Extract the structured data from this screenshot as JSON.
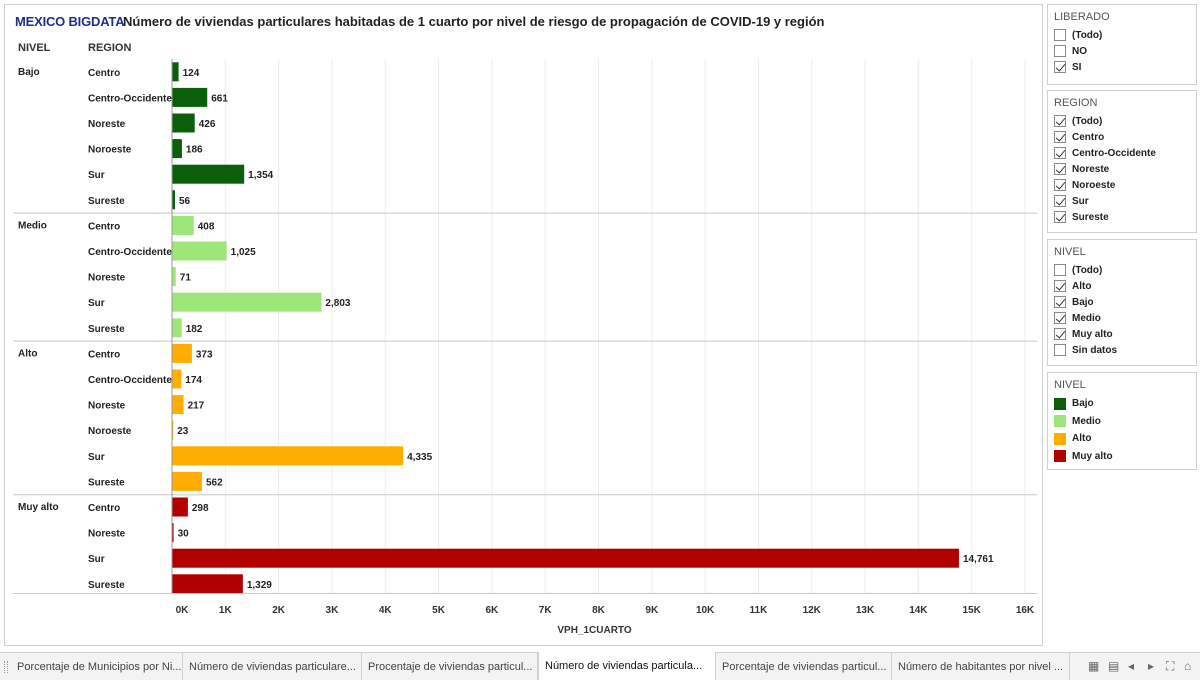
{
  "header": {
    "brand": "MEXICO BIGDATA",
    "title": "Número de viviendas particulares habitadas de 1 cuarto por nivel de riesgo de propagación de COVID-19 y región"
  },
  "columns": {
    "nivel": "NIVEL",
    "region": "REGION"
  },
  "colors": {
    "Bajo": "#0b5f0b",
    "Medio": "#9ce67a",
    "Alto": "#ffad00",
    "Muy alto": "#b00000"
  },
  "chart_data": {
    "type": "bar",
    "orientation": "horizontal",
    "title": "Número de viviendas particulares habitadas de 1 cuarto por nivel de riesgo de propagación de COVID-19 y región",
    "xlabel": "VPH_1CUARTO",
    "ylabel": "",
    "xlim": [
      0,
      16000
    ],
    "xticks": [
      0,
      1000,
      2000,
      3000,
      4000,
      5000,
      6000,
      7000,
      8000,
      9000,
      10000,
      11000,
      12000,
      13000,
      14000,
      15000,
      16000
    ],
    "xtick_labels": [
      "0K",
      "1K",
      "2K",
      "3K",
      "4K",
      "5K",
      "6K",
      "7K",
      "8K",
      "9K",
      "10K",
      "11K",
      "12K",
      "13K",
      "14K",
      "15K",
      "16K"
    ],
    "grid": true,
    "groups": [
      {
        "nivel": "Bajo",
        "rows": [
          {
            "region": "Centro",
            "value": 124,
            "label": "124"
          },
          {
            "region": "Centro-Occidente",
            "value": 661,
            "label": "661"
          },
          {
            "region": "Noreste",
            "value": 426,
            "label": "426"
          },
          {
            "region": "Noroeste",
            "value": 186,
            "label": "186"
          },
          {
            "region": "Sur",
            "value": 1354,
            "label": "1,354"
          },
          {
            "region": "Sureste",
            "value": 56,
            "label": "56"
          }
        ]
      },
      {
        "nivel": "Medio",
        "rows": [
          {
            "region": "Centro",
            "value": 408,
            "label": "408"
          },
          {
            "region": "Centro-Occidente",
            "value": 1025,
            "label": "1,025"
          },
          {
            "region": "Noreste",
            "value": 71,
            "label": "71"
          },
          {
            "region": "Sur",
            "value": 2803,
            "label": "2,803"
          },
          {
            "region": "Sureste",
            "value": 182,
            "label": "182"
          }
        ]
      },
      {
        "nivel": "Alto",
        "rows": [
          {
            "region": "Centro",
            "value": 373,
            "label": "373"
          },
          {
            "region": "Centro-Occidente",
            "value": 174,
            "label": "174"
          },
          {
            "region": "Noreste",
            "value": 217,
            "label": "217"
          },
          {
            "region": "Noroeste",
            "value": 23,
            "label": "23"
          },
          {
            "region": "Sur",
            "value": 4335,
            "label": "4,335"
          },
          {
            "region": "Sureste",
            "value": 562,
            "label": "562"
          }
        ]
      },
      {
        "nivel": "Muy alto",
        "rows": [
          {
            "region": "Centro",
            "value": 298,
            "label": "298"
          },
          {
            "region": "Noreste",
            "value": 30,
            "label": "30"
          },
          {
            "region": "Sur",
            "value": 14761,
            "label": "14,761"
          },
          {
            "region": "Sureste",
            "value": 1329,
            "label": "1,329"
          }
        ]
      }
    ]
  },
  "filters": {
    "liberado": {
      "title": "LIBERADO",
      "items": [
        {
          "label": "(Todo)",
          "checked": false
        },
        {
          "label": "NO",
          "checked": false
        },
        {
          "label": "SI",
          "checked": true
        }
      ]
    },
    "region": {
      "title": "REGION",
      "items": [
        {
          "label": "(Todo)",
          "checked": true
        },
        {
          "label": "Centro",
          "checked": true
        },
        {
          "label": "Centro-Occidente",
          "checked": true
        },
        {
          "label": "Noreste",
          "checked": true
        },
        {
          "label": "Noroeste",
          "checked": true
        },
        {
          "label": "Sur",
          "checked": true
        },
        {
          "label": "Sureste",
          "checked": true
        }
      ]
    },
    "nivel": {
      "title": "NIVEL",
      "items": [
        {
          "label": "(Todo)",
          "checked": false
        },
        {
          "label": "Alto",
          "checked": true
        },
        {
          "label": "Bajo",
          "checked": true
        },
        {
          "label": "Medio",
          "checked": true
        },
        {
          "label": "Muy alto",
          "checked": true
        },
        {
          "label": "Sin datos",
          "checked": false
        }
      ]
    }
  },
  "legend": {
    "title": "NIVEL",
    "items": [
      {
        "label": "Bajo",
        "color": "#0b5f0b"
      },
      {
        "label": "Medio",
        "color": "#9ce67a"
      },
      {
        "label": "Alto",
        "color": "#ffad00"
      },
      {
        "label": "Muy alto",
        "color": "#b00000"
      }
    ]
  },
  "tabs": [
    {
      "label": "Porcentaje de Municipios por Ni...",
      "active": false
    },
    {
      "label": "Número de viviendas particulare...",
      "active": false
    },
    {
      "label": "Procentaje de viviendas particul...",
      "active": false
    },
    {
      "label": "Número de viviendas particula...",
      "active": true
    },
    {
      "label": "Porcentaje de viviendas particul...",
      "active": false
    },
    {
      "label": "Número de habitantes por nivel ...",
      "active": false
    }
  ],
  "tab_controls": [
    {
      "name": "grid-view-icon",
      "glyph": "▦"
    },
    {
      "name": "list-view-icon",
      "glyph": "▤"
    },
    {
      "name": "prev-tab-icon",
      "glyph": "◂"
    },
    {
      "name": "next-tab-icon",
      "glyph": "▸"
    },
    {
      "name": "fullscreen-icon",
      "glyph": "⛶"
    },
    {
      "name": "presentation-icon",
      "glyph": "⌂"
    }
  ]
}
